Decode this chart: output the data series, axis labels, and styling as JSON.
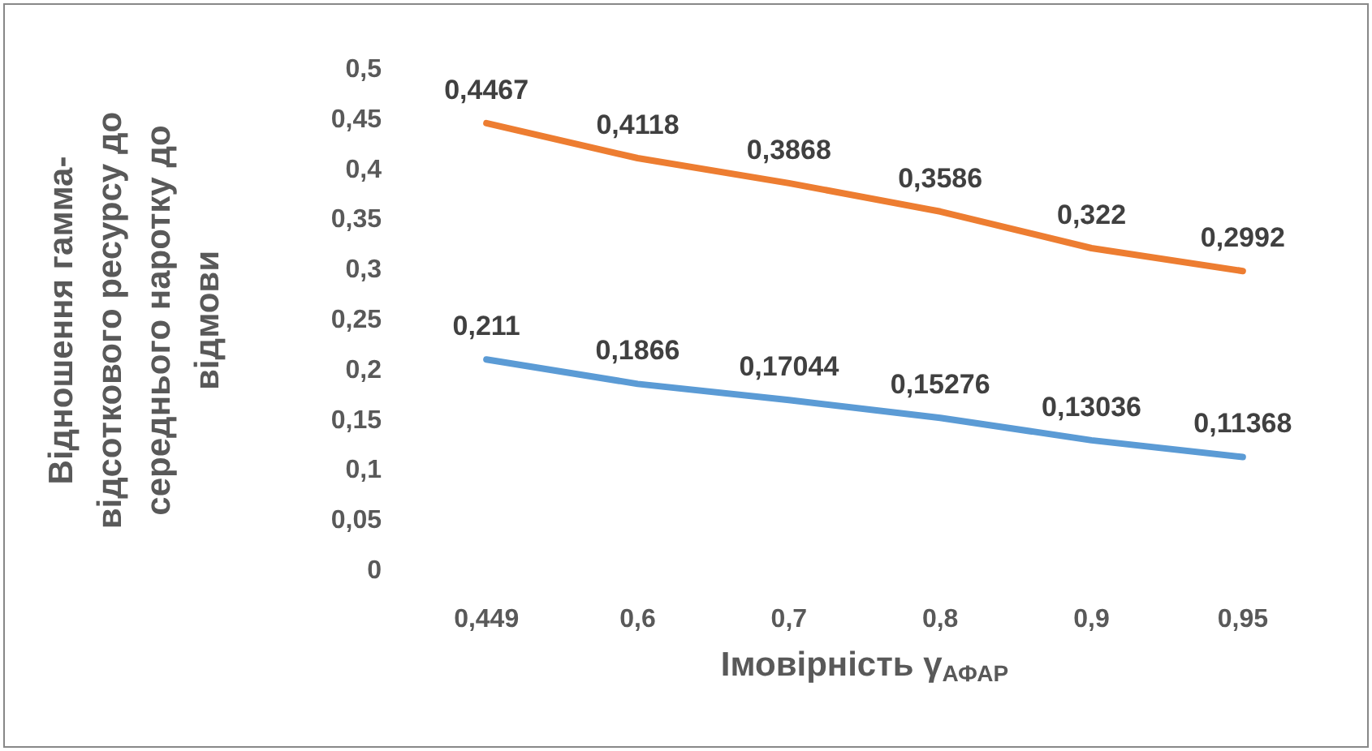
{
  "chart_data": {
    "type": "line",
    "xlabel": "Імовірність γ$_{АФАР}$",
    "ylabel": "Відношення гамма-відсоткового ресурсу до середнього наротку до відмови",
    "categories": [
      "0,449",
      "0,6",
      "0,7",
      "0,8",
      "0,9",
      "0,95"
    ],
    "series": [
      {
        "color": "#5b9bd5",
        "values": [
          0.211,
          0.1866,
          0.17044,
          0.15276,
          0.13036,
          0.11368
        ],
        "value_labels": [
          "0,211",
          "0,1866",
          "0,17044",
          "0,15276",
          "0,13036",
          "0,11368"
        ]
      },
      {
        "color": "#ed7d31",
        "values": [
          0.4467,
          0.4118,
          0.3868,
          0.3586,
          0.322,
          0.2992
        ],
        "value_labels": [
          "0,4467",
          "0,4118",
          "0,3868",
          "0,3586",
          "0,322",
          "0,2992"
        ]
      }
    ],
    "ylim": [
      0,
      0.5
    ],
    "yticks": [
      {
        "value": 0,
        "label": "0"
      },
      {
        "value": 0.05,
        "label": "0,05"
      },
      {
        "value": 0.1,
        "label": "0,1"
      },
      {
        "value": 0.15,
        "label": "0,15"
      },
      {
        "value": 0.2,
        "label": "0,2"
      },
      {
        "value": 0.25,
        "label": "0,25"
      },
      {
        "value": 0.3,
        "label": "0,3"
      },
      {
        "value": 0.35,
        "label": "0,35"
      },
      {
        "value": 0.4,
        "label": "0,4"
      },
      {
        "value": 0.45,
        "label": "0,45"
      },
      {
        "value": 0.5,
        "label": "0,5"
      }
    ],
    "grid": false,
    "marker": "none",
    "line_style": "solid"
  }
}
